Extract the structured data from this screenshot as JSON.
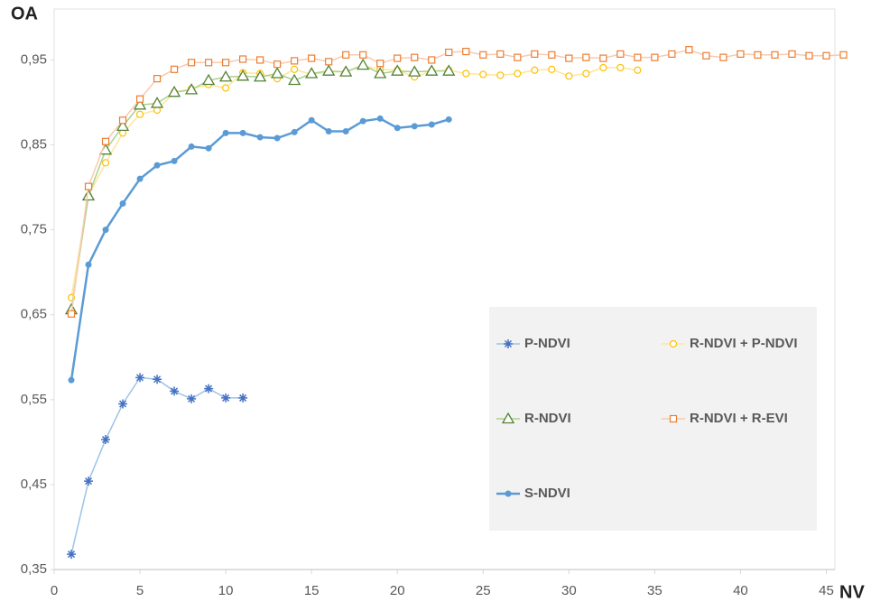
{
  "chart_data": {
    "type": "line",
    "x_label": "NV",
    "y_label": "OA",
    "xlim": [
      0,
      45.5
    ],
    "xticks": [
      0,
      5,
      10,
      15,
      20,
      25,
      30,
      35,
      40,
      45
    ],
    "ylim": [
      0.35,
      1.01
    ],
    "yticks": [
      {
        "value": 0.35,
        "label": "0,35"
      },
      {
        "value": 0.45,
        "label": "0,45"
      },
      {
        "value": 0.55,
        "label": "0,55"
      },
      {
        "value": 0.65,
        "label": "0,65"
      },
      {
        "value": 0.75,
        "label": "0,75"
      },
      {
        "value": 0.85,
        "label": "0,85"
      },
      {
        "value": 0.95,
        "label": "0,95"
      }
    ],
    "grid": false,
    "legend": "lower right",
    "series": [
      {
        "name": "P-NDVI",
        "color": "#4472c4",
        "line_color": "#9dc3e6",
        "line_width": 1.5,
        "marker": "star",
        "x": [
          1,
          2,
          3,
          4,
          5,
          6,
          7,
          8,
          9,
          10,
          11
        ],
        "values": [
          0.368,
          0.454,
          0.503,
          0.545,
          0.576,
          0.574,
          0.56,
          0.551,
          0.563,
          0.552,
          0.552
        ]
      },
      {
        "name": "R-NDVI + P-NDVI",
        "color": "#ffc000",
        "line_color": "#ffe699",
        "line_width": 1.5,
        "marker": "circle",
        "x": [
          1,
          2,
          3,
          4,
          5,
          6,
          7,
          8,
          9,
          10,
          11,
          12,
          13,
          14,
          15,
          16,
          17,
          18,
          19,
          20,
          21,
          22,
          23,
          24,
          25,
          26,
          27,
          28,
          29,
          30,
          31,
          32,
          33,
          34
        ],
        "values": [
          0.67,
          0.79,
          0.829,
          0.864,
          0.886,
          0.891,
          0.912,
          0.916,
          0.921,
          0.917,
          0.935,
          0.934,
          0.928,
          0.939,
          0.933,
          0.936,
          0.936,
          0.943,
          0.939,
          0.938,
          0.93,
          0.937,
          0.938,
          0.934,
          0.933,
          0.932,
          0.934,
          0.938,
          0.939,
          0.931,
          0.934,
          0.941,
          0.941,
          0.938
        ]
      },
      {
        "name": "R-NDVI",
        "color": "#548235",
        "line_color": "#a9d18e",
        "line_width": 1.5,
        "marker": "triangle",
        "x": [
          1,
          2,
          3,
          4,
          5,
          6,
          7,
          8,
          9,
          10,
          11,
          12,
          13,
          14,
          15,
          16,
          17,
          18,
          19,
          20,
          21,
          22,
          23
        ],
        "values": [
          0.656,
          0.79,
          0.844,
          0.872,
          0.897,
          0.899,
          0.912,
          0.915,
          0.926,
          0.93,
          0.931,
          0.93,
          0.934,
          0.926,
          0.934,
          0.937,
          0.936,
          0.944,
          0.934,
          0.937,
          0.936,
          0.937,
          0.937
        ]
      },
      {
        "name": "R-NDVI + R-EVI",
        "color": "#ed7d31",
        "line_color": "#f8cbad",
        "line_width": 1.5,
        "marker": "square",
        "x": [
          1,
          2,
          3,
          4,
          5,
          6,
          7,
          8,
          9,
          10,
          11,
          12,
          13,
          14,
          15,
          16,
          17,
          18,
          19,
          20,
          21,
          22,
          23,
          24,
          25,
          26,
          27,
          28,
          29,
          30,
          31,
          32,
          33,
          34,
          35,
          36,
          37,
          38,
          39,
          40,
          41,
          42,
          43,
          44,
          45,
          46
        ],
        "values": [
          0.651,
          0.801,
          0.854,
          0.879,
          0.904,
          0.928,
          0.939,
          0.947,
          0.947,
          0.947,
          0.951,
          0.95,
          0.945,
          0.949,
          0.952,
          0.948,
          0.956,
          0.956,
          0.946,
          0.952,
          0.953,
          0.95,
          0.959,
          0.96,
          0.956,
          0.957,
          0.953,
          0.957,
          0.956,
          0.952,
          0.953,
          0.952,
          0.957,
          0.953,
          0.953,
          0.957,
          0.962,
          0.955,
          0.953,
          0.957,
          0.956,
          0.956,
          0.957,
          0.955,
          0.955,
          0.956
        ]
      },
      {
        "name": "S-NDVI",
        "color": "#5b9bd5",
        "line_color": "#5b9bd5",
        "line_width": 2.5,
        "marker": "dot",
        "x": [
          1,
          2,
          3,
          4,
          5,
          6,
          7,
          8,
          9,
          10,
          11,
          12,
          13,
          14,
          15,
          16,
          17,
          18,
          19,
          20,
          21,
          22,
          23
        ],
        "values": [
          0.573,
          0.709,
          0.75,
          0.781,
          0.81,
          0.826,
          0.831,
          0.848,
          0.846,
          0.864,
          0.864,
          0.859,
          0.858,
          0.865,
          0.879,
          0.866,
          0.866,
          0.878,
          0.881,
          0.87,
          0.872,
          0.874,
          0.88
        ]
      }
    ]
  }
}
